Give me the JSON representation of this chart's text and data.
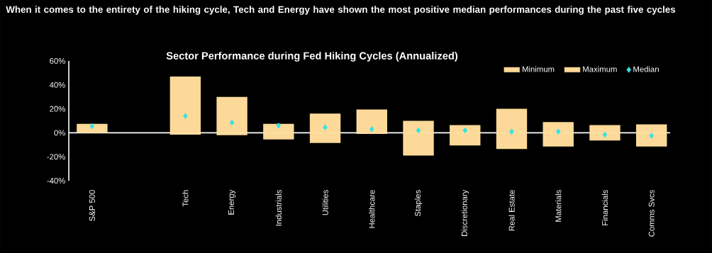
{
  "chart_data": {
    "type": "bar",
    "title": "When it comes to the entirety of the hiking cycle, Tech and Energy have shown the most positive median performances during the past five cycles",
    "subtitle": "Sector Performance during Fed Hiking Cycles (Annualized)",
    "categories": [
      "S&P 500",
      null,
      "Tech",
      "Energy",
      "Industrials",
      "Utilities",
      "Healthcare",
      "Staples",
      "Discretionary",
      "Real Estate",
      "Materials",
      "Financials",
      "Comms Svcs"
    ],
    "series": [
      {
        "name": "Minimum",
        "color": "#fcd998",
        "values": [
          0,
          null,
          -1.5,
          -2,
          -5.5,
          -8.5,
          -1,
          -19,
          -10.5,
          -13.5,
          -11.5,
          -6.5,
          -11.5
        ]
      },
      {
        "name": "Maximum",
        "color": "#fcd998",
        "values": [
          7.5,
          null,
          47,
          30,
          7.5,
          16,
          19.5,
          10,
          6.5,
          20,
          9,
          6.5,
          7
        ]
      },
      {
        "name": "Median",
        "type": "scatter",
        "color": "#33e3e3",
        "values": [
          5.5,
          null,
          14,
          8.5,
          6,
          4.5,
          3,
          2,
          2,
          1,
          1,
          -1.5,
          -2.5
        ]
      }
    ],
    "stacked": true,
    "marker": "diamond",
    "legend": "top right",
    "ylim": [
      -40,
      60
    ],
    "yticks": [
      {
        "value": -40,
        "label": "-40%"
      },
      {
        "value": -20,
        "label": "-20%"
      },
      {
        "value": 0,
        "label": "0%"
      },
      {
        "value": 20,
        "label": "20%"
      },
      {
        "value": 40,
        "label": "40%"
      },
      {
        "value": 60,
        "label": "60%"
      }
    ]
  }
}
